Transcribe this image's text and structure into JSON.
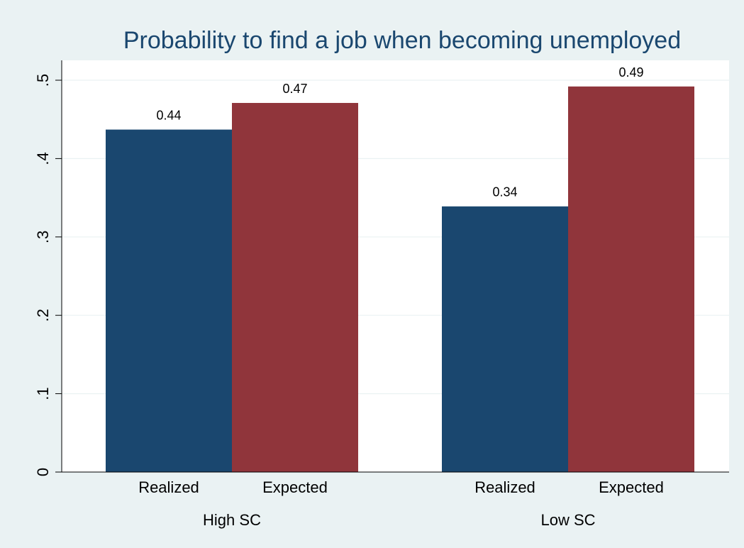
{
  "chart_data": {
    "type": "bar",
    "title": "Probability to find a job  when becoming unemployed",
    "groups": [
      {
        "label": "High SC",
        "bars": [
          {
            "label": "Realized",
            "value": 0.437,
            "data_label": "0.44",
            "color": "#1a476f"
          },
          {
            "label": "Expected",
            "value": 0.471,
            "data_label": "0.47",
            "color": "#90353b"
          }
        ]
      },
      {
        "label": "Low SC",
        "bars": [
          {
            "label": "Realized",
            "value": 0.339,
            "data_label": "0.34",
            "color": "#1a476f"
          },
          {
            "label": "Expected",
            "value": 0.492,
            "data_label": "0.49",
            "color": "#90353b"
          }
        ]
      }
    ],
    "yticks": [
      0,
      0.1,
      0.2,
      0.3,
      0.4,
      0.5
    ],
    "ytick_labels": [
      "0",
      ".1",
      ".2",
      ".3",
      ".4",
      ".5"
    ],
    "ylim": [
      0,
      0.5
    ],
    "grid": true,
    "legend": "none"
  }
}
